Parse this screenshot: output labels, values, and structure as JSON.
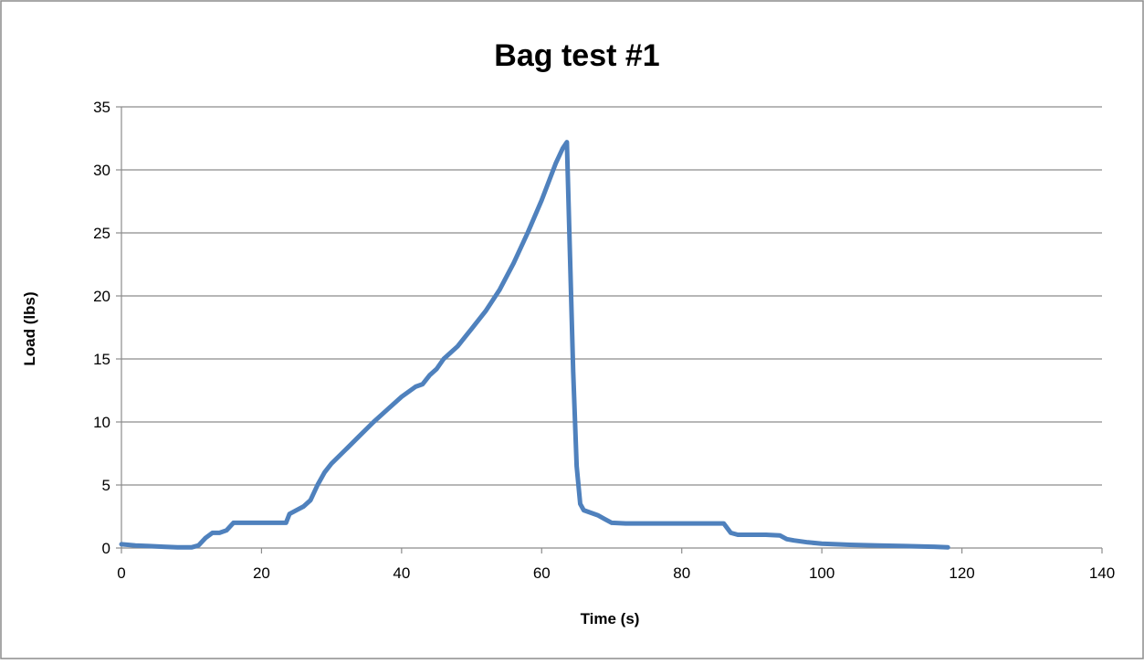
{
  "chart_data": {
    "type": "line",
    "title": "Bag test #1",
    "xlabel": "Time (s)",
    "ylabel": "Load (lbs)",
    "xlim": [
      0,
      140
    ],
    "ylim": [
      0,
      35
    ],
    "x_ticks": [
      "0",
      "20",
      "40",
      "60",
      "80",
      "100",
      "120",
      "140"
    ],
    "y_ticks": [
      "0",
      "5",
      "10",
      "15",
      "20",
      "25",
      "30",
      "35"
    ],
    "grid": "horizontal",
    "legend": "none",
    "series": [
      {
        "color": "#4F81BD",
        "x": [
          0,
          2,
          4,
          6,
          8,
          10,
          11,
          12,
          13,
          14,
          15,
          16,
          18,
          20,
          21,
          22,
          23.5,
          24,
          25,
          26,
          27,
          28,
          29,
          30,
          32,
          34,
          36,
          38,
          40,
          42,
          43,
          44,
          45,
          46,
          48,
          50,
          52,
          54,
          56,
          58,
          60,
          62,
          63,
          63.6,
          64,
          64.5,
          65,
          65.5,
          66,
          67,
          68,
          69,
          70,
          72,
          76,
          80,
          84,
          86,
          87,
          88,
          90,
          92,
          94,
          95,
          96,
          98,
          100,
          104,
          108,
          112,
          116,
          118
        ],
        "y": [
          0.3,
          0.2,
          0.15,
          0.1,
          0.05,
          0.05,
          0.2,
          0.8,
          1.2,
          1.2,
          1.4,
          2.0,
          2.0,
          2.0,
          2.0,
          2.0,
          2.0,
          2.7,
          3.0,
          3.3,
          3.8,
          5.0,
          6.0,
          6.7,
          7.8,
          8.9,
          10.0,
          11.0,
          12.0,
          12.8,
          13.0,
          13.7,
          14.2,
          15.0,
          16.0,
          17.4,
          18.8,
          20.5,
          22.6,
          25.0,
          27.6,
          30.5,
          31.7,
          32.2,
          24.0,
          14.0,
          6.5,
          3.5,
          3.0,
          2.8,
          2.6,
          2.3,
          2.0,
          1.95,
          1.95,
          1.95,
          1.95,
          1.95,
          1.2,
          1.05,
          1.05,
          1.05,
          1.0,
          0.7,
          0.6,
          0.45,
          0.35,
          0.25,
          0.2,
          0.15,
          0.1,
          0.05
        ]
      }
    ]
  }
}
